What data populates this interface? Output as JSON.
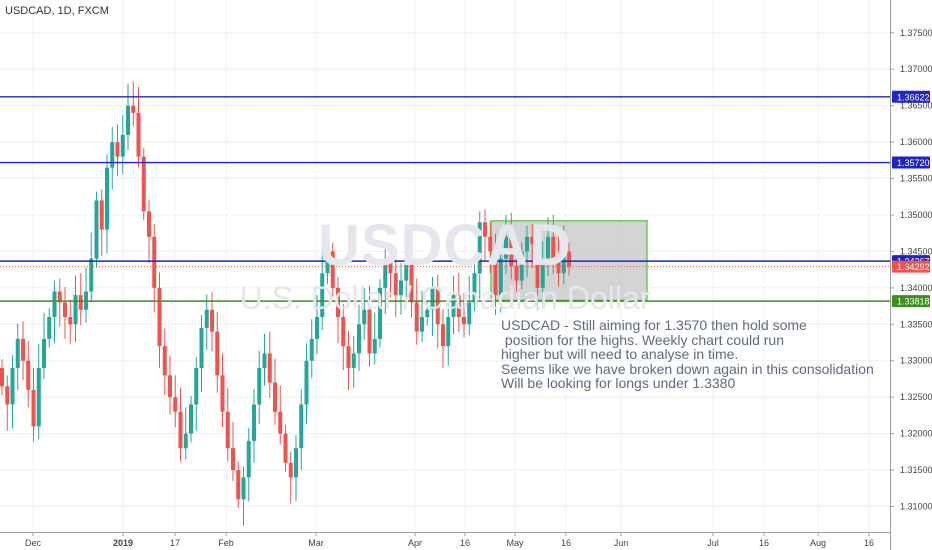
{
  "header": {
    "title": "USDCAD, 1D, FXCM"
  },
  "watermark": {
    "symbol": "USDCAD",
    "description": "U.S. Dollar / Canadian Dollar"
  },
  "annotation": {
    "text": "USDCAD - Still aiming for 1.3570 then hold some\n position for the highs. Weekly chart could run\nhigher but will need to analyse in time.\nSeems like we have broken down again in this consolidation\nWill be looking for longs under 1.3380"
  },
  "colors": {
    "up": "#26a69a",
    "down": "#ef5350",
    "level_blue": "#1f24c9",
    "level_green": "#3c8f1d",
    "box_fill": "#c8c8c8",
    "box_border": "#4fce3e"
  },
  "chart_data": {
    "type": "candlestick",
    "symbol": "USDCAD",
    "timeframe": "1D",
    "ylim": [
      1.3065,
      1.3795
    ],
    "y_ticks": [
      "1.37500",
      "1.37000",
      "1.36500",
      "1.36000",
      "1.35500",
      "1.35000",
      "1.34500",
      "1.34000",
      "1.33500",
      "1.33000",
      "1.32500",
      "1.32000",
      "1.31500",
      "1.31000"
    ],
    "x_ticks": [
      "Dec",
      "2019",
      "17",
      "Feb",
      "Mar",
      "Apr",
      "16",
      "May",
      "16",
      "Jun",
      "Jul",
      "16",
      "Aug",
      "16"
    ],
    "horizontal_levels": [
      {
        "price": 1.36622,
        "label": "1.36622",
        "color": "blue"
      },
      {
        "price": 1.3572,
        "label": "1.35720",
        "color": "blue"
      },
      {
        "price": 1.34367,
        "label": "1.34367",
        "color": "blue"
      },
      {
        "price": 1.33818,
        "label": "1.33818",
        "color": "green"
      }
    ],
    "current_price": {
      "price": 1.34292,
      "label": "1.34292"
    },
    "consolidation_box": {
      "price_top": 1.3492,
      "price_bottom": 1.3383,
      "start": "Apr 25",
      "end": "Jun 05"
    },
    "closes": [
      1.3265,
      1.324,
      1.329,
      1.333,
      1.33,
      1.326,
      1.321,
      1.329,
      1.333,
      1.336,
      1.3395,
      1.338,
      1.336,
      1.335,
      1.339,
      1.337,
      1.3395,
      1.344,
      1.352,
      1.348,
      1.3565,
      1.36,
      1.358,
      1.361,
      1.365,
      1.364,
      1.358,
      1.3505,
      1.347,
      1.34,
      1.332,
      1.328,
      1.325,
      1.323,
      1.318,
      1.32,
      1.324,
      1.329,
      1.3345,
      1.337,
      1.334,
      1.328,
      1.323,
      1.318,
      1.315,
      1.311,
      1.314,
      1.319,
      1.324,
      1.329,
      1.331,
      1.327,
      1.323,
      1.32,
      1.316,
      1.314,
      1.318,
      1.324,
      1.33,
      1.333,
      1.336,
      1.342,
      1.345,
      1.34,
      1.336,
      1.332,
      1.329,
      1.331,
      1.335,
      1.337,
      1.331,
      1.333,
      1.34,
      1.344,
      1.342,
      1.339,
      1.341,
      1.344,
      1.338,
      1.334,
      1.336,
      1.337,
      1.34,
      1.335,
      1.332,
      1.336,
      1.339,
      1.336,
      1.335,
      1.338,
      1.342,
      1.349,
      1.347,
      1.345,
      1.339,
      1.344,
      1.347,
      1.343,
      1.341,
      1.345,
      1.347,
      1.346,
      1.34,
      1.344,
      1.347,
      1.344,
      1.342,
      1.345,
      1.3429
    ]
  }
}
